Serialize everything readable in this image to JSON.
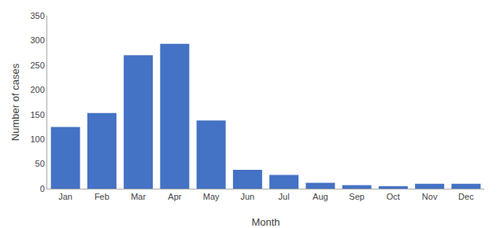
{
  "chart_data": {
    "type": "bar",
    "categories": [
      "Jan",
      "Feb",
      "Mar",
      "Apr",
      "May",
      "Jun",
      "Jul",
      "Aug",
      "Sep",
      "Oct",
      "Nov",
      "Dec"
    ],
    "values": [
      125,
      153,
      270,
      293,
      138,
      38,
      28,
      12,
      7,
      5,
      10,
      10
    ],
    "color": "#4472C4",
    "xlabel": "Month",
    "ylabel": "Number of cases",
    "ylim": [
      0,
      350
    ],
    "yticks": [
      0,
      50,
      100,
      150,
      200,
      250,
      300,
      350
    ],
    "grid": false
  }
}
